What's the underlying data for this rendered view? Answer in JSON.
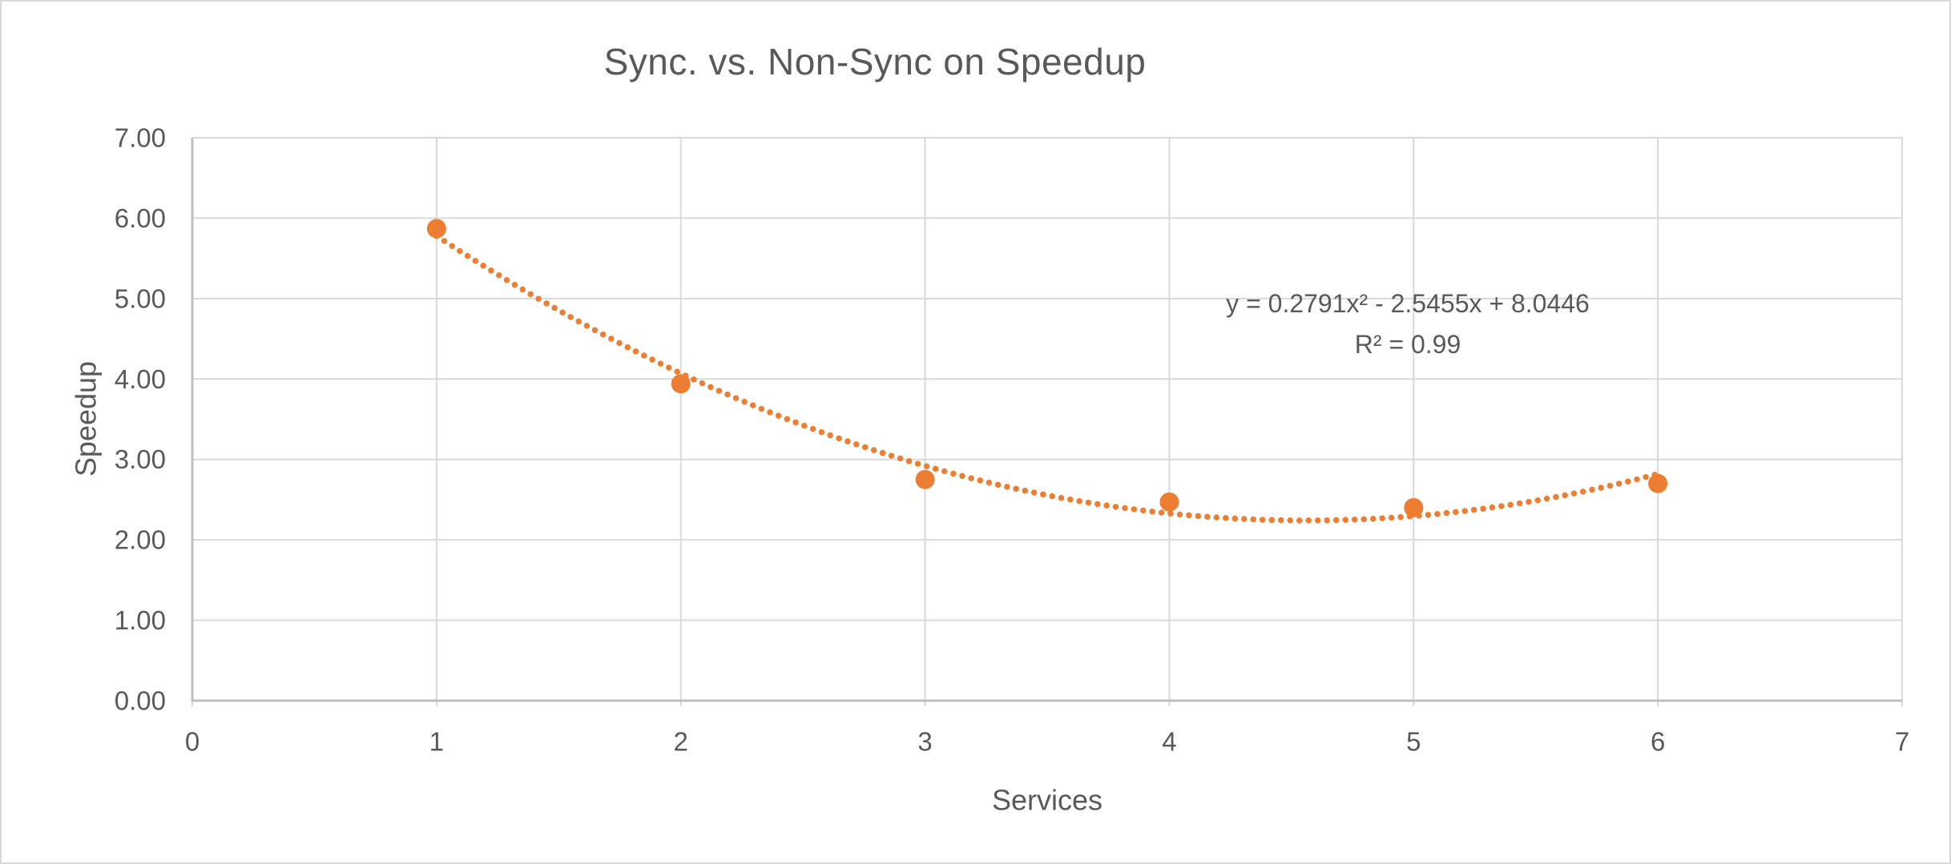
{
  "chart_data": {
    "type": "scatter",
    "title": "Sync. vs. Non-Sync on Speedup",
    "xlabel": "Services",
    "ylabel": "Speedup",
    "xlim": [
      0,
      7
    ],
    "ylim": [
      0,
      7
    ],
    "x_ticks": [
      "0",
      "1",
      "2",
      "3",
      "4",
      "5",
      "6",
      "7"
    ],
    "y_ticks": [
      "0.00",
      "1.00",
      "2.00",
      "3.00",
      "4.00",
      "5.00",
      "6.00",
      "7.00"
    ],
    "grid": true,
    "legend": "none",
    "marker": "circle",
    "series": [
      {
        "name": "Speedup",
        "x": [
          1,
          2,
          3,
          4,
          5,
          6
        ],
        "y": [
          5.87,
          3.94,
          2.75,
          2.47,
          2.4,
          2.7
        ]
      }
    ],
    "trendline": {
      "type": "polynomial",
      "order": 2,
      "coefficients": {
        "a": 0.2791,
        "b": -2.5455,
        "c": 8.0446
      },
      "x_range": [
        1,
        6
      ],
      "style": "dotted",
      "equation_label": "y = 0.2791x² - 2.5455x + 8.0446",
      "r2_label": "R² = 0.99"
    },
    "colors": {
      "series": "#ED7D31",
      "trendline": "#ED7D31",
      "text": "#595959",
      "gridline": "#D9D9D9",
      "axis_line": "#BFBFBF",
      "background": "#FFFFFF",
      "border": "#D9D9D9"
    }
  }
}
